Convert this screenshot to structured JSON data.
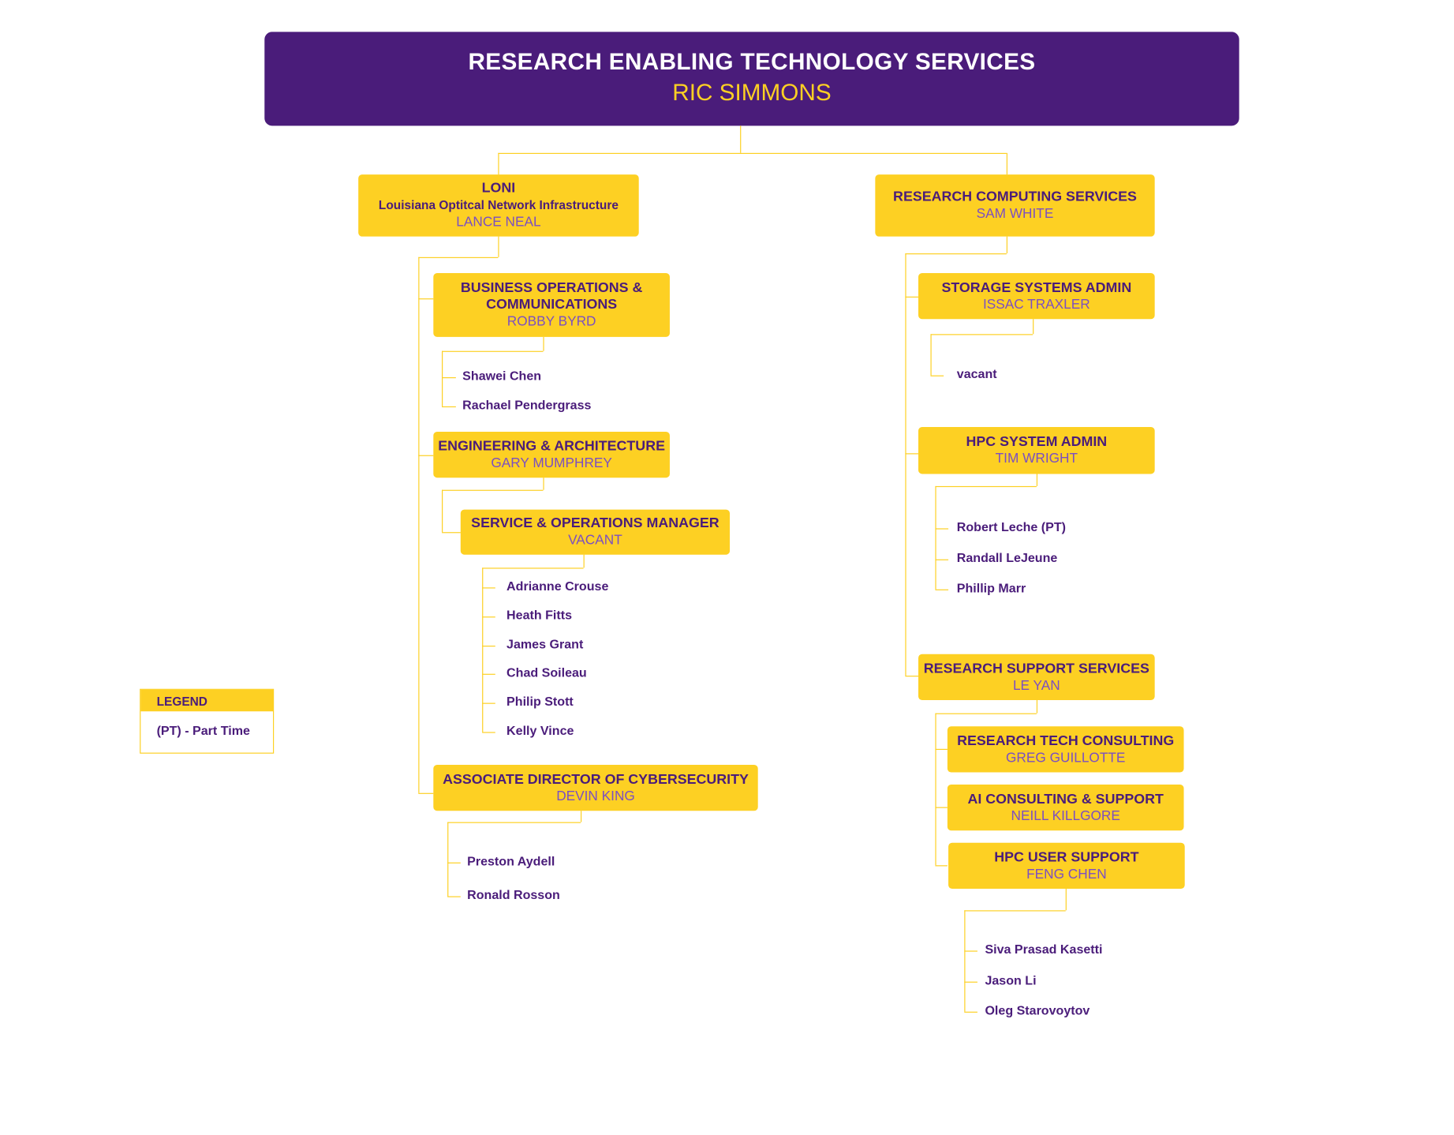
{
  "header": {
    "title": "RESEARCH ENABLING TECHNOLOGY SERVICES",
    "manager": "RIC SIMMONS"
  },
  "colors": {
    "primary_purple": "#4a1c7a",
    "gold": "#fdd023",
    "manager_text": "#7b4fc2"
  },
  "units": [
    {
      "title": "LONI",
      "subtitle": "Louisiana Optitcal Network Infrastructure",
      "manager": "LANCE NEAL",
      "staff": []
    },
    {
      "title": "RESEARCH COMPUTING SERVICES",
      "manager": "SAM WHITE",
      "staff": []
    },
    {
      "title": "BUSINESS OPERATIONS & COMMUNICATIONS",
      "manager": "ROBBY BYRD",
      "staff": [
        "Shawei Chen",
        "Rachael Pendergrass"
      ]
    },
    {
      "title": "ENGINEERING & ARCHITECTURE",
      "manager": "GARY MUMPHREY",
      "staff": []
    },
    {
      "title": "SERVICE & OPERATIONS MANAGER",
      "manager": "VACANT",
      "staff": [
        "Adrianne Crouse",
        "Heath Fitts",
        "James Grant",
        "Chad Soileau",
        "Philip Stott",
        "Kelly Vince"
      ]
    },
    {
      "title": "ASSOCIATE DIRECTOR OF CYBERSECURITY",
      "manager": "DEVIN KING",
      "staff": [
        "Preston Aydell",
        "Ronald Rosson"
      ]
    },
    {
      "title": "STORAGE SYSTEMS ADMIN",
      "manager": "ISSAC TRAXLER",
      "staff": [
        "vacant"
      ]
    },
    {
      "title": "HPC SYSTEM ADMIN",
      "manager": "TIM WRIGHT",
      "staff": [
        "Robert Leche (PT)",
        "Randall LeJeune",
        "Phillip Marr"
      ]
    },
    {
      "title": "RESEARCH SUPPORT SERVICES",
      "manager": "LE YAN",
      "staff": []
    },
    {
      "title": "RESEARCH TECH CONSULTING",
      "manager": "GREG GUILLOTTE",
      "staff": []
    },
    {
      "title": "AI CONSULTING & SUPPORT",
      "manager": "NEILL KILLGORE",
      "staff": []
    },
    {
      "title": "HPC USER SUPPORT",
      "manager": "FENG CHEN",
      "staff": [
        "Siva Prasad Kasetti",
        "Jason Li",
        "Oleg Starovoytov"
      ]
    }
  ],
  "legend": {
    "title": "LEGEND",
    "items": [
      "(PT) - Part Time"
    ]
  }
}
